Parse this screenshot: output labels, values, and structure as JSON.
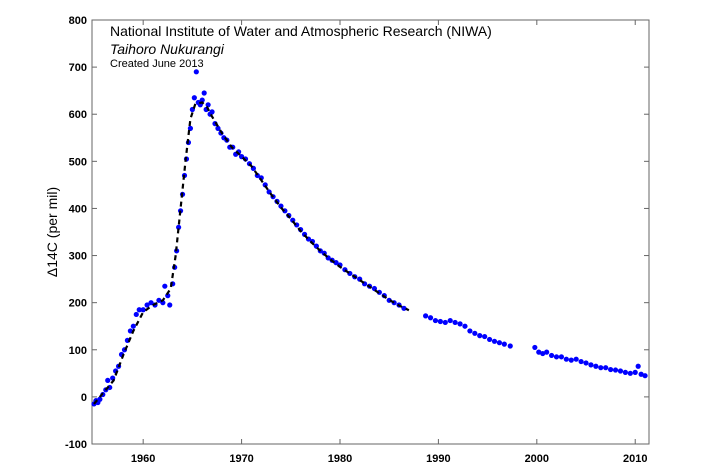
{
  "chart_data": {
    "type": "scatter",
    "title": "",
    "xlabel": "",
    "ylabel": "Δ14C (per mil)",
    "xlim": [
      1954.8,
      2011.4
    ],
    "ylim": [
      -100,
      800
    ],
    "xticks": [
      1960,
      1970,
      1980,
      1990,
      2000,
      2010
    ],
    "yticks": [
      -100,
      0,
      100,
      200,
      300,
      400,
      500,
      600,
      700,
      800
    ],
    "grid": false,
    "annotations": {
      "institute": "National Institute of Water and Atmospheric Research (NIWA)",
      "maori_name": "Taihoro Nukurangi",
      "created": "Created June 2013"
    },
    "colors": {
      "points": "#0000ff",
      "fit": "#000000"
    },
    "series": [
      {
        "kind": "scatter",
        "points": [
          [
            1955.0,
            -15
          ],
          [
            1955.2,
            -8
          ],
          [
            1955.4,
            -12
          ],
          [
            1955.6,
            -5
          ],
          [
            1955.9,
            5
          ],
          [
            1956.2,
            15
          ],
          [
            1956.4,
            35
          ],
          [
            1956.6,
            20
          ],
          [
            1956.9,
            40
          ],
          [
            1957.2,
            55
          ],
          [
            1957.5,
            65
          ],
          [
            1957.8,
            90
          ],
          [
            1958.1,
            100
          ],
          [
            1958.4,
            120
          ],
          [
            1958.7,
            140
          ],
          [
            1959.0,
            150
          ],
          [
            1959.3,
            175
          ],
          [
            1959.6,
            185
          ],
          [
            1960.0,
            185
          ],
          [
            1960.4,
            195
          ],
          [
            1960.8,
            200
          ],
          [
            1961.2,
            195
          ],
          [
            1961.6,
            205
          ],
          [
            1962.0,
            200
          ],
          [
            1962.2,
            235
          ],
          [
            1962.5,
            215
          ],
          [
            1962.7,
            195
          ],
          [
            1963.0,
            240
          ],
          [
            1963.2,
            275
          ],
          [
            1963.4,
            310
          ],
          [
            1963.6,
            360
          ],
          [
            1963.8,
            395
          ],
          [
            1964.0,
            430
          ],
          [
            1964.2,
            470
          ],
          [
            1964.4,
            505
          ],
          [
            1964.6,
            540
          ],
          [
            1964.8,
            570
          ],
          [
            1965.0,
            610
          ],
          [
            1965.2,
            635
          ],
          [
            1965.4,
            690
          ],
          [
            1965.6,
            625
          ],
          [
            1965.8,
            620
          ],
          [
            1966.0,
            630
          ],
          [
            1966.2,
            645
          ],
          [
            1966.4,
            610
          ],
          [
            1966.6,
            620
          ],
          [
            1966.8,
            600
          ],
          [
            1967.0,
            605
          ],
          [
            1967.3,
            580
          ],
          [
            1967.6,
            570
          ],
          [
            1967.9,
            560
          ],
          [
            1968.2,
            550
          ],
          [
            1968.5,
            545
          ],
          [
            1968.8,
            530
          ],
          [
            1969.1,
            530
          ],
          [
            1969.4,
            515
          ],
          [
            1969.7,
            520
          ],
          [
            1970.0,
            510
          ],
          [
            1970.4,
            505
          ],
          [
            1970.8,
            495
          ],
          [
            1971.2,
            485
          ],
          [
            1971.6,
            470
          ],
          [
            1972.0,
            465
          ],
          [
            1972.4,
            450
          ],
          [
            1972.8,
            435
          ],
          [
            1973.2,
            425
          ],
          [
            1973.6,
            415
          ],
          [
            1974.0,
            405
          ],
          [
            1974.4,
            395
          ],
          [
            1974.8,
            385
          ],
          [
            1975.2,
            375
          ],
          [
            1975.6,
            365
          ],
          [
            1976.0,
            355
          ],
          [
            1976.4,
            345
          ],
          [
            1976.8,
            335
          ],
          [
            1977.2,
            330
          ],
          [
            1977.6,
            320
          ],
          [
            1978.0,
            310
          ],
          [
            1978.4,
            305
          ],
          [
            1978.8,
            295
          ],
          [
            1979.2,
            290
          ],
          [
            1979.6,
            285
          ],
          [
            1980.0,
            280
          ],
          [
            1980.5,
            270
          ],
          [
            1981.0,
            262
          ],
          [
            1981.5,
            255
          ],
          [
            1982.0,
            250
          ],
          [
            1982.5,
            240
          ],
          [
            1983.0,
            235
          ],
          [
            1983.5,
            230
          ],
          [
            1984.0,
            222
          ],
          [
            1984.5,
            215
          ],
          [
            1985.0,
            205
          ],
          [
            1985.5,
            200
          ],
          [
            1986.0,
            195
          ],
          [
            1986.5,
            188
          ],
          [
            1988.7,
            172
          ],
          [
            1989.2,
            168
          ],
          [
            1989.7,
            162
          ],
          [
            1990.2,
            160
          ],
          [
            1990.7,
            158
          ],
          [
            1991.2,
            162
          ],
          [
            1991.7,
            158
          ],
          [
            1992.2,
            155
          ],
          [
            1992.7,
            150
          ],
          [
            1993.2,
            140
          ],
          [
            1993.7,
            135
          ],
          [
            1994.2,
            130
          ],
          [
            1994.7,
            128
          ],
          [
            1995.2,
            122
          ],
          [
            1995.7,
            118
          ],
          [
            1996.2,
            115
          ],
          [
            1996.7,
            112
          ],
          [
            1997.3,
            108
          ],
          [
            1999.8,
            105
          ],
          [
            2000.2,
            95
          ],
          [
            2000.6,
            92
          ],
          [
            2001.0,
            95
          ],
          [
            2001.5,
            88
          ],
          [
            2002.0,
            85
          ],
          [
            2002.5,
            85
          ],
          [
            2003.0,
            80
          ],
          [
            2003.5,
            78
          ],
          [
            2004.0,
            80
          ],
          [
            2004.5,
            75
          ],
          [
            2005.0,
            72
          ],
          [
            2005.5,
            68
          ],
          [
            2006.0,
            65
          ],
          [
            2006.5,
            62
          ],
          [
            2007.0,
            62
          ],
          [
            2007.5,
            58
          ],
          [
            2008.0,
            57
          ],
          [
            2008.5,
            55
          ],
          [
            2009.0,
            52
          ],
          [
            2009.5,
            50
          ],
          [
            2010.0,
            52
          ],
          [
            2010.3,
            65
          ],
          [
            2010.6,
            48
          ],
          [
            2011.0,
            45
          ]
        ]
      },
      {
        "kind": "fit-dashed",
        "points": [
          [
            1955.0,
            -15
          ],
          [
            1956.0,
            10
          ],
          [
            1957.0,
            35
          ],
          [
            1958.0,
            90
          ],
          [
            1959.0,
            140
          ],
          [
            1960.0,
            180
          ],
          [
            1961.0,
            195
          ],
          [
            1962.0,
            205
          ],
          [
            1962.8,
            230
          ],
          [
            1963.3,
            300
          ],
          [
            1963.8,
            400
          ],
          [
            1964.3,
            500
          ],
          [
            1964.8,
            590
          ],
          [
            1965.3,
            622
          ],
          [
            1966.0,
            625
          ],
          [
            1966.5,
            615
          ],
          [
            1967.0,
            595
          ],
          [
            1968.0,
            560
          ],
          [
            1969.0,
            530
          ],
          [
            1970.0,
            510
          ],
          [
            1971.0,
            490
          ],
          [
            1972.0,
            460
          ],
          [
            1973.0,
            430
          ],
          [
            1974.0,
            402
          ],
          [
            1975.0,
            378
          ],
          [
            1976.0,
            352
          ],
          [
            1977.0,
            330
          ],
          [
            1978.0,
            310
          ],
          [
            1979.0,
            292
          ],
          [
            1980.0,
            276
          ],
          [
            1981.0,
            262
          ],
          [
            1982.0,
            248
          ],
          [
            1983.0,
            234
          ],
          [
            1984.0,
            220
          ],
          [
            1985.0,
            206
          ],
          [
            1986.0,
            194
          ],
          [
            1987.0,
            184
          ]
        ]
      }
    ]
  }
}
